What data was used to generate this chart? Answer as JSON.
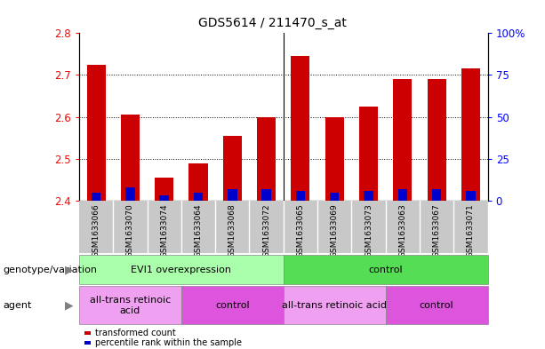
{
  "title": "GDS5614 / 211470_s_at",
  "samples": [
    "GSM1633066",
    "GSM1633070",
    "GSM1633074",
    "GSM1633064",
    "GSM1633068",
    "GSM1633072",
    "GSM1633065",
    "GSM1633069",
    "GSM1633073",
    "GSM1633063",
    "GSM1633067",
    "GSM1633071"
  ],
  "transformed_count": [
    2.725,
    2.605,
    2.455,
    2.49,
    2.555,
    2.6,
    2.745,
    2.6,
    2.625,
    2.69,
    2.69,
    2.715
  ],
  "percentile_rank": [
    5,
    8,
    3,
    5,
    7,
    7,
    6,
    5,
    6,
    7,
    7,
    6
  ],
  "ylim_left": [
    2.4,
    2.8
  ],
  "ylim_right": [
    0,
    100
  ],
  "yticks_left": [
    2.4,
    2.5,
    2.6,
    2.7,
    2.8
  ],
  "yticks_right": [
    0,
    25,
    50,
    75,
    100
  ],
  "ytick_right_labels": [
    "0",
    "25",
    "50",
    "75",
    "100%"
  ],
  "bar_color_red": "#cc0000",
  "bar_color_blue": "#0000cc",
  "bar_width": 0.55,
  "plot_facecolor": "#ffffff",
  "tick_area_color": "#c8c8c8",
  "genotype_groups": [
    {
      "label": "EVI1 overexpression",
      "start": 0,
      "end": 6,
      "color": "#aaffaa"
    },
    {
      "label": "control",
      "start": 6,
      "end": 12,
      "color": "#55dd55"
    }
  ],
  "agent_groups": [
    {
      "label": "all-trans retinoic\nacid",
      "start": 0,
      "end": 3,
      "color": "#f0a0f0"
    },
    {
      "label": "control",
      "start": 3,
      "end": 6,
      "color": "#dd55dd"
    },
    {
      "label": "all-trans retinoic acid",
      "start": 6,
      "end": 9,
      "color": "#f0a0f0"
    },
    {
      "label": "control",
      "start": 9,
      "end": 12,
      "color": "#dd55dd"
    }
  ],
  "legend_items": [
    {
      "label": "transformed count",
      "color": "#cc0000"
    },
    {
      "label": "percentile rank within the sample",
      "color": "#0000cc"
    }
  ],
  "title_fontsize": 10,
  "axis_fontsize": 8.5,
  "label_fontsize": 8,
  "row_label_fontsize": 8
}
